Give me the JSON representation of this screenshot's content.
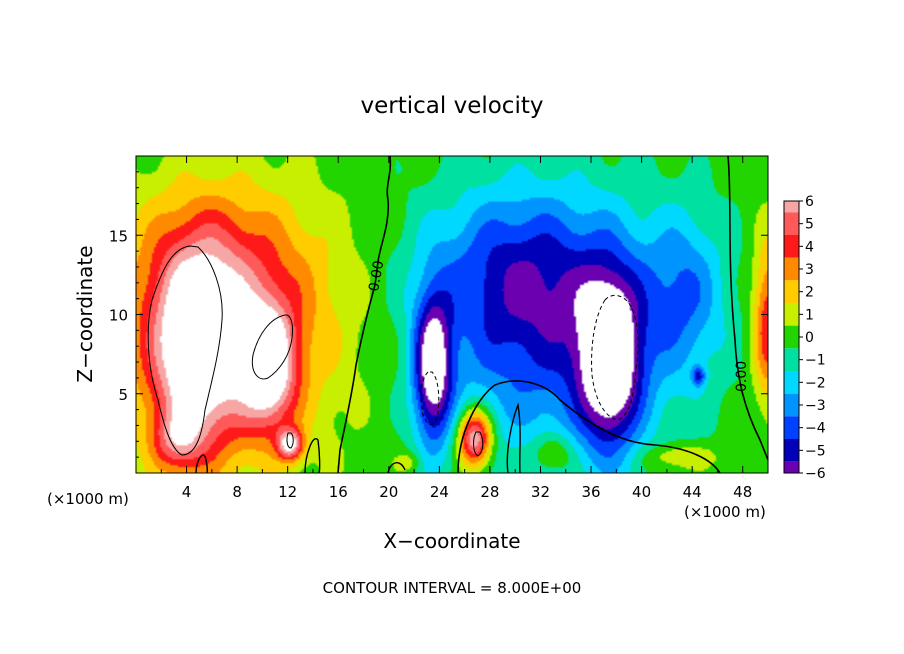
{
  "chart_data": {
    "type": "heatmap",
    "title": "vertical velocity",
    "xlabel": "X−coordinate",
    "ylabel": "Z−coordinate",
    "x_unit_left": "(×1000 m)",
    "x_unit_right": "(×1000 m)",
    "footer": "CONTOUR INTERVAL = 8.000E+00",
    "xlim": [
      0,
      50
    ],
    "ylim": [
      0,
      20
    ],
    "x_ticks": [
      "4",
      "8",
      "12",
      "16",
      "20",
      "24",
      "28",
      "32",
      "36",
      "40",
      "44",
      "48"
    ],
    "y_ticks": [
      "5",
      "10",
      "15"
    ],
    "contour_labels": [
      "0.00",
      "0.00"
    ],
    "colorbar": {
      "labels": [
        "6",
        "5",
        "4",
        "3",
        "2",
        "1",
        "0",
        "−1",
        "−2",
        "−3",
        "−4",
        "−5",
        "−6"
      ],
      "colors": [
        "#f7a6a6",
        "#ff5a5a",
        "#ff1a1a",
        "#ff8a00",
        "#ffcc00",
        "#c8ee00",
        "#22d400",
        "#00e0a0",
        "#00d8ff",
        "#0094ff",
        "#0040ff",
        "#0000b8",
        "#6a00b0"
      ]
    },
    "features": [
      {
        "x": 4.8,
        "z": 7.5,
        "rx": 3.6,
        "rz": 6.3,
        "w": 7.0
      },
      {
        "x": 10.5,
        "z": 6.6,
        "rx": 2.1,
        "rz": 3.8,
        "w": 6.6
      },
      {
        "x": 12.2,
        "z": 1.8,
        "rx": 1.0,
        "rz": 1.0,
        "w": 6.0
      },
      {
        "x": 8.0,
        "z": 9.0,
        "rx": 9.0,
        "rz": 7.5,
        "w": 3.4
      },
      {
        "x": 6.5,
        "z": 13.5,
        "rx": 7.0,
        "rz": 5.0,
        "w": 2.0
      },
      {
        "x": 3.2,
        "z": 2.0,
        "rx": 2.0,
        "rz": 1.8,
        "w": 3.0
      },
      {
        "x": 23.5,
        "z": 6.5,
        "rx": 1.5,
        "rz": 4.6,
        "w": -7.0
      },
      {
        "x": 37.5,
        "z": 7.0,
        "rx": 2.4,
        "rz": 5.4,
        "w": -7.0
      },
      {
        "x": 33.0,
        "z": 9.0,
        "rx": 10.0,
        "rz": 8.0,
        "w": -4.2
      },
      {
        "x": 30.0,
        "z": 13.0,
        "rx": 7.0,
        "rz": 5.0,
        "w": -2.5
      },
      {
        "x": 43.5,
        "z": 11.5,
        "rx": 3.0,
        "rz": 5.0,
        "w": -2.5
      },
      {
        "x": 44.5,
        "z": 6.1,
        "rx": 0.5,
        "rz": 0.6,
        "w": -3.5
      },
      {
        "x": 26.8,
        "z": 2.2,
        "rx": 1.3,
        "rz": 1.8,
        "w": 7.5
      },
      {
        "x": 33.0,
        "z": 1.3,
        "rx": 1.6,
        "rz": 1.2,
        "w": 2.2
      },
      {
        "x": 21.5,
        "z": 0.7,
        "rx": 1.0,
        "rz": 0.6,
        "w": 1.5
      },
      {
        "x": 43.0,
        "z": 1.0,
        "rx": 3.0,
        "rz": 0.8,
        "w": 2.0
      },
      {
        "x": 50.0,
        "z": 9.5,
        "rx": 1.2,
        "rz": 5.0,
        "w": 4.5
      }
    ]
  }
}
